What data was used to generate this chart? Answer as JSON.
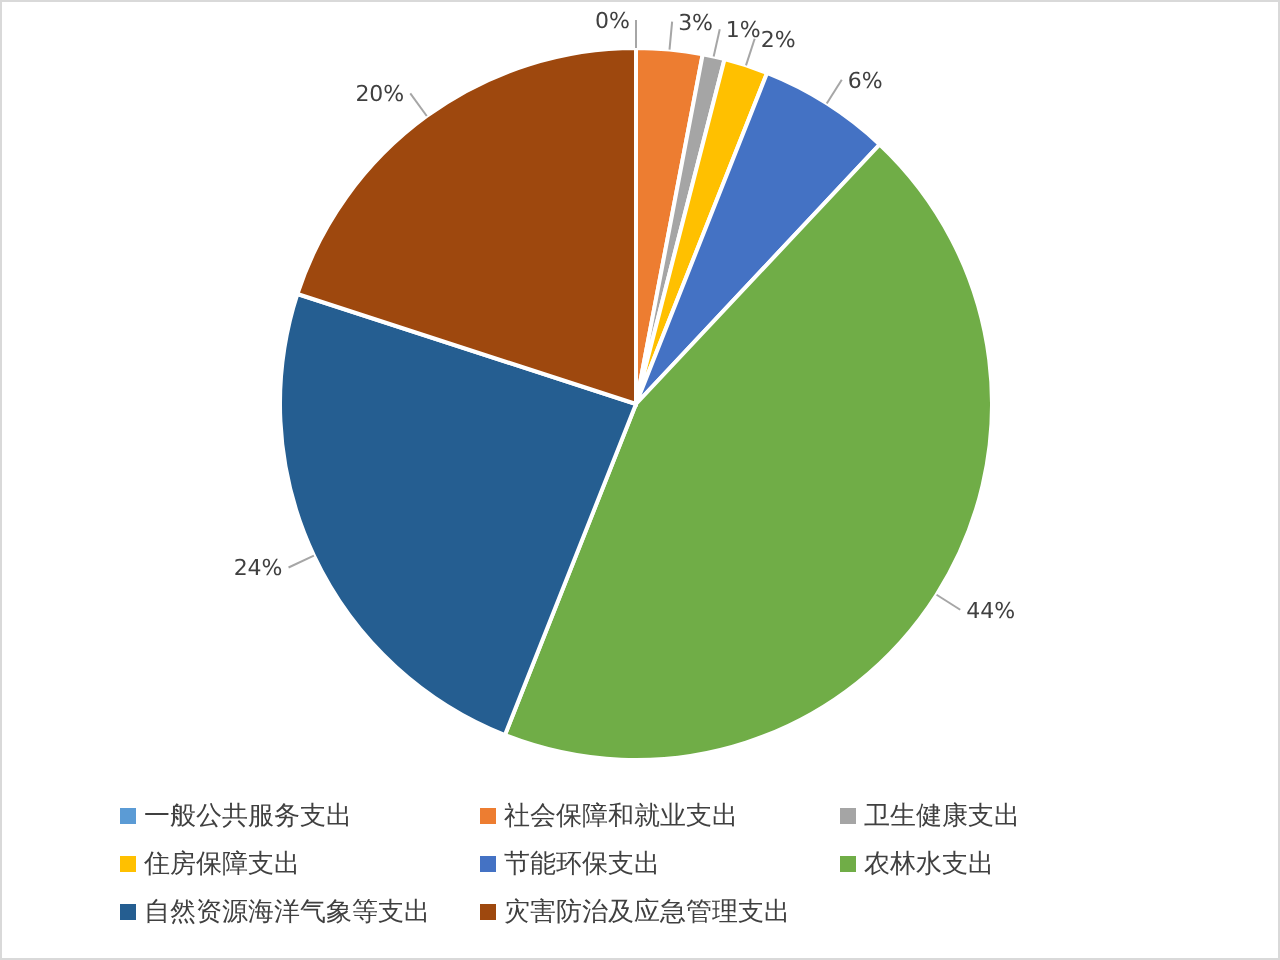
{
  "chart_data": {
    "type": "pie",
    "categories": [
      "一般公共服务支出",
      "社会保障和就业支出",
      "卫生健康支出",
      "住房保障支出",
      "节能环保支出",
      "农林水支出",
      "自然资源海洋气象等支出",
      "灾害防治及应急管理支出"
    ],
    "values": [
      0,
      3,
      1,
      2,
      6,
      44,
      24,
      20
    ],
    "colors": [
      "#5b9bd5",
      "#ed7d31",
      "#a5a5a5",
      "#ffc000",
      "#4472c4",
      "#70ad47",
      "#255e91",
      "#9e480e"
    ],
    "value_labels": [
      "0%",
      "3%",
      "1%",
      "2%",
      "6%",
      "44%",
      "24%",
      "20%"
    ],
    "legend": "bottom"
  }
}
